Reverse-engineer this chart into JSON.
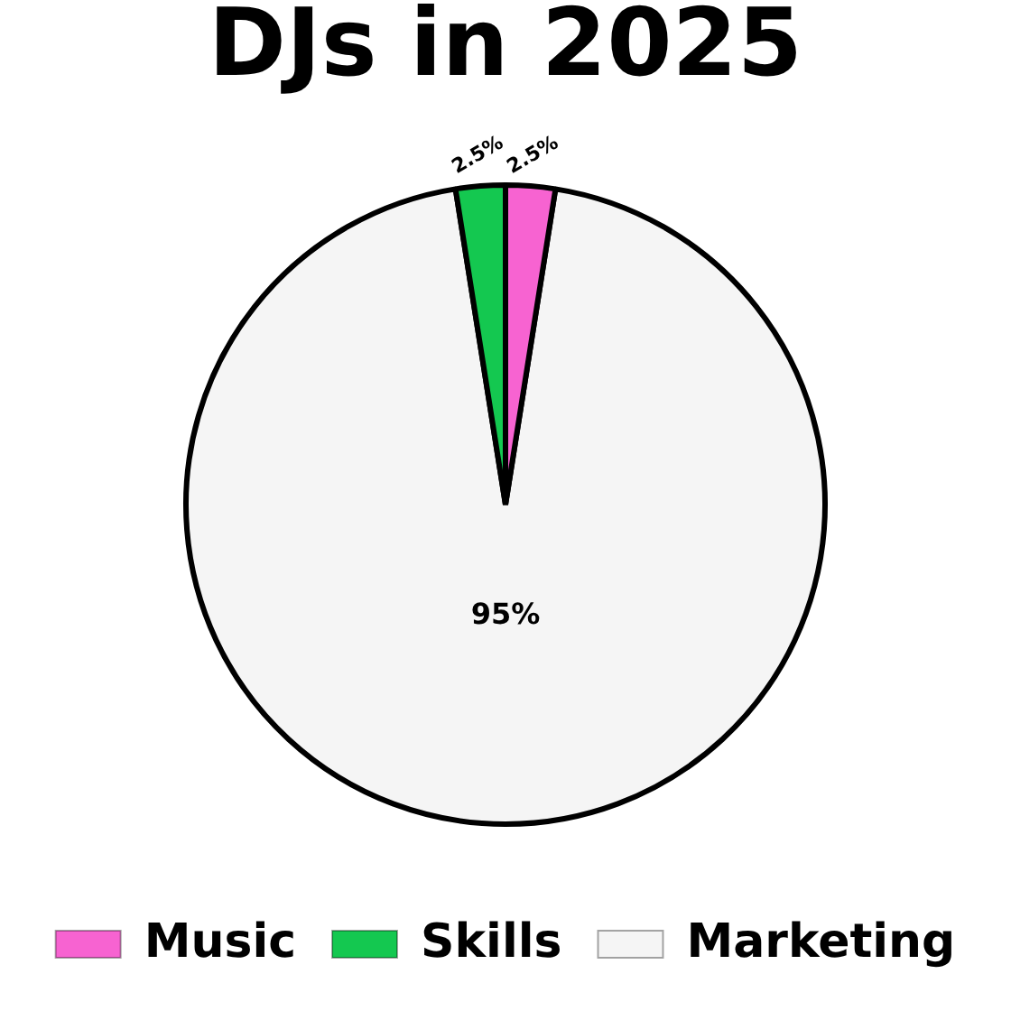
{
  "chart_data": {
    "type": "pie",
    "title": "DJs in 2025",
    "categories": [
      "Music",
      "Skills",
      "Marketing"
    ],
    "values": [
      2.5,
      2.5,
      95
    ],
    "colors": [
      "#f763d1",
      "#14c850",
      "#f5f5f5"
    ],
    "value_labels": [
      "2.5%",
      "2.5%",
      "95%"
    ],
    "legend": "bottom"
  }
}
